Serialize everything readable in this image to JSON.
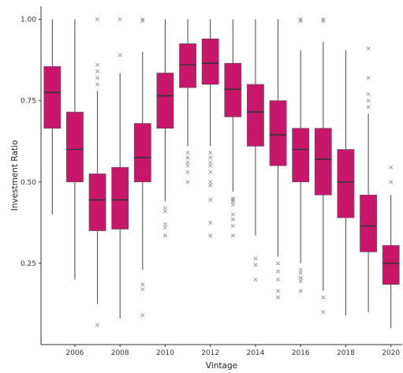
{
  "chart_data": {
    "type": "boxplot",
    "xlabel": "Vintage",
    "ylabel": "Investment Ratio",
    "ylim": [
      0.0,
      1.04
    ],
    "yticks": [
      0.25,
      0.5,
      0.75,
      1.0
    ],
    "ytick_labels": [
      "0.25",
      "0.50",
      "0.75",
      "1.00"
    ],
    "xticks": [
      2006,
      2008,
      2010,
      2012,
      2014,
      2016,
      2018,
      2020
    ],
    "xtick_labels": [
      "2006",
      "2008",
      "2010",
      "2012",
      "2014",
      "2016",
      "2018",
      "2020"
    ],
    "grid": false,
    "box_color": "#c8176a",
    "median_color": "#333333",
    "whisker_color": "#444444",
    "outlier_color": "#999999",
    "boxes": [
      {
        "year": 2005,
        "whislo": 0.4,
        "q1": 0.665,
        "med": 0.775,
        "q3": 0.855,
        "whishi": 1.0,
        "outliers": []
      },
      {
        "year": 2006,
        "whislo": 0.2,
        "q1": 0.5,
        "med": 0.6,
        "q3": 0.715,
        "whishi": 1.0,
        "outliers": []
      },
      {
        "year": 2007,
        "whislo": 0.125,
        "q1": 0.35,
        "med": 0.445,
        "q3": 0.525,
        "whishi": 0.78,
        "outliers": [
          0.06,
          0.8,
          0.82,
          0.84,
          0.86,
          1.0
        ]
      },
      {
        "year": 2008,
        "whislo": 0.08,
        "q1": 0.355,
        "med": 0.445,
        "q3": 0.545,
        "whishi": 0.835,
        "outliers": [
          0.89,
          1.0
        ]
      },
      {
        "year": 2009,
        "whislo": 0.23,
        "q1": 0.5,
        "med": 0.575,
        "q3": 0.68,
        "whishi": 0.9,
        "outliers": [
          0.09,
          0.17,
          0.185,
          0.995,
          1.0
        ]
      },
      {
        "year": 2010,
        "whislo": 0.44,
        "q1": 0.665,
        "med": 0.765,
        "q3": 0.835,
        "whishi": 1.0,
        "outliers": [
          0.335,
          0.36,
          0.37,
          0.41,
          0.42
        ]
      },
      {
        "year": 2011,
        "whislo": 0.61,
        "q1": 0.79,
        "med": 0.86,
        "q3": 0.925,
        "whishi": 1.0,
        "outliers": [
          0.5,
          0.53,
          0.55,
          0.56,
          0.575,
          0.59
        ]
      },
      {
        "year": 2012,
        "whislo": 0.61,
        "q1": 0.8,
        "med": 0.865,
        "q3": 0.94,
        "whishi": 1.0,
        "outliers": [
          0.335,
          0.375,
          0.445,
          0.49,
          0.5,
          0.53,
          0.55,
          0.56,
          0.575,
          0.59
        ]
      },
      {
        "year": 2013,
        "whislo": 0.47,
        "q1": 0.7,
        "med": 0.785,
        "q3": 0.865,
        "whishi": 1.0,
        "outliers": [
          0.335,
          0.365,
          0.385,
          0.4,
          0.43,
          0.44,
          0.445,
          0.45
        ]
      },
      {
        "year": 2014,
        "whislo": 0.335,
        "q1": 0.61,
        "med": 0.715,
        "q3": 0.8,
        "whishi": 1.0,
        "outliers": [
          0.2,
          0.245,
          0.265
        ]
      },
      {
        "year": 2015,
        "whislo": 0.27,
        "q1": 0.55,
        "med": 0.645,
        "q3": 0.75,
        "whishi": 1.0,
        "outliers": [
          0.145,
          0.165,
          0.2,
          0.225,
          0.25
        ]
      },
      {
        "year": 2016,
        "whislo": 0.25,
        "q1": 0.5,
        "med": 0.6,
        "q3": 0.665,
        "whishi": 0.905,
        "outliers": [
          0.165,
          0.195,
          0.205,
          0.22,
          0.23,
          0.995,
          1.0
        ]
      },
      {
        "year": 2017,
        "whislo": 0.165,
        "q1": 0.46,
        "med": 0.57,
        "q3": 0.665,
        "whishi": 0.93,
        "outliers": [
          0.1,
          0.145,
          0.995,
          1.0
        ]
      },
      {
        "year": 2018,
        "whislo": 0.09,
        "q1": 0.39,
        "med": 0.5,
        "q3": 0.6,
        "whishi": 0.905,
        "outliers": []
      },
      {
        "year": 2019,
        "whislo": 0.1,
        "q1": 0.285,
        "med": 0.365,
        "q3": 0.46,
        "whishi": 0.71,
        "outliers": [
          0.73,
          0.75,
          0.77,
          0.82,
          0.91
        ]
      },
      {
        "year": 2020,
        "whislo": 0.05,
        "q1": 0.185,
        "med": 0.25,
        "q3": 0.305,
        "whishi": 0.46,
        "outliers": [
          0.5,
          0.545
        ]
      }
    ]
  }
}
